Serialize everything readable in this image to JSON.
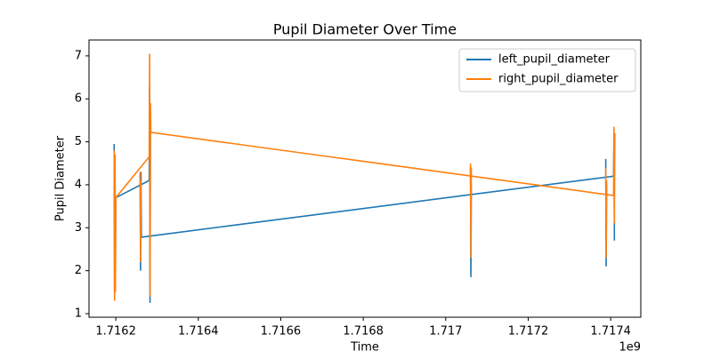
{
  "chart_data": {
    "type": "line",
    "title": "Pupil Diameter Over Time",
    "xlabel": "Time",
    "ylabel": "Pupil Diameter",
    "x_offset_label": "1e9",
    "xlim": [
      1.716135,
      1.717473
    ],
    "xticks": [
      1.7162,
      1.7164,
      1.7166,
      1.7168,
      1.717,
      1.7172,
      1.7174
    ],
    "ylim": [
      0.917,
      7.37
    ],
    "yticks": [
      1,
      2,
      3,
      4,
      5,
      6,
      7
    ],
    "legend": "upper right",
    "series": [
      {
        "name": "left_pupil_diameter",
        "color": "#1f77b4",
        "x": [
          1.716196,
          1.716197,
          1.716198,
          1.716199,
          1.7162,
          1.716281,
          1.716282,
          1.716283,
          1.716284,
          1.716285,
          1.716259,
          1.71626,
          1.716261,
          1.716262,
          1.717407,
          1.717408,
          1.717409,
          1.71741,
          1.71706,
          1.717061,
          1.717062,
          1.717063,
          1.717388,
          1.717389,
          1.71739
        ],
        "values": [
          4.95,
          1.5,
          4.7,
          2.0,
          3.7,
          4.1,
          6.3,
          1.25,
          5.5,
          null,
          4.25,
          2.0,
          4.3,
          2.78,
          4.2,
          5.2,
          2.7,
          null,
          4.4,
          1.85,
          4.0,
          null,
          4.6,
          2.1,
          4.0
        ]
      },
      {
        "name": "right_pupil_diameter",
        "color": "#ff7f0e",
        "x": [
          1.716196,
          1.716197,
          1.716198,
          1.716199,
          1.7162,
          1.716281,
          1.716282,
          1.716283,
          1.716284,
          1.716285,
          1.717407,
          1.717408,
          1.717409,
          1.71741,
          1.717411,
          1.71706,
          1.717061,
          1.717062,
          1.717063,
          1.717388,
          1.717389,
          1.71739,
          1.717391,
          1.716259,
          1.71626,
          1.716261
        ],
        "values": [
          4.8,
          1.3,
          4.7,
          1.5,
          3.7,
          4.65,
          7.05,
          1.4,
          5.9,
          5.22,
          3.75,
          5.35,
          3.1,
          5.2,
          null,
          4.5,
          2.3,
          4.4,
          null,
          4.4,
          2.3,
          4.1,
          null,
          4.3,
          2.2,
          4.1
        ]
      }
    ]
  }
}
